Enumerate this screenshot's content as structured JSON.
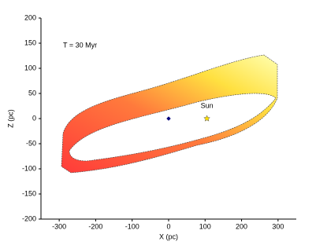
{
  "chart_data": {
    "type": "scatter",
    "annotation": "T = 30 Myr",
    "x_label": "X (pc)",
    "y_label": "Z (pc)",
    "points": [
      {
        "x": 0,
        "y": 0,
        "color": "#000080",
        "marker": "diamond"
      },
      {
        "x": 105,
        "y": 0,
        "color": "#ffe000",
        "marker": "star",
        "label": "Sun"
      }
    ],
    "xlim": [
      -350,
      350
    ],
    "xticks": [
      -300,
      -200,
      -100,
      0,
      100,
      200,
      300
    ],
    "ylim": [
      -200,
      200
    ],
    "yticks": [
      -200,
      -150,
      -100,
      -50,
      0,
      50,
      100,
      150,
      200
    ]
  }
}
